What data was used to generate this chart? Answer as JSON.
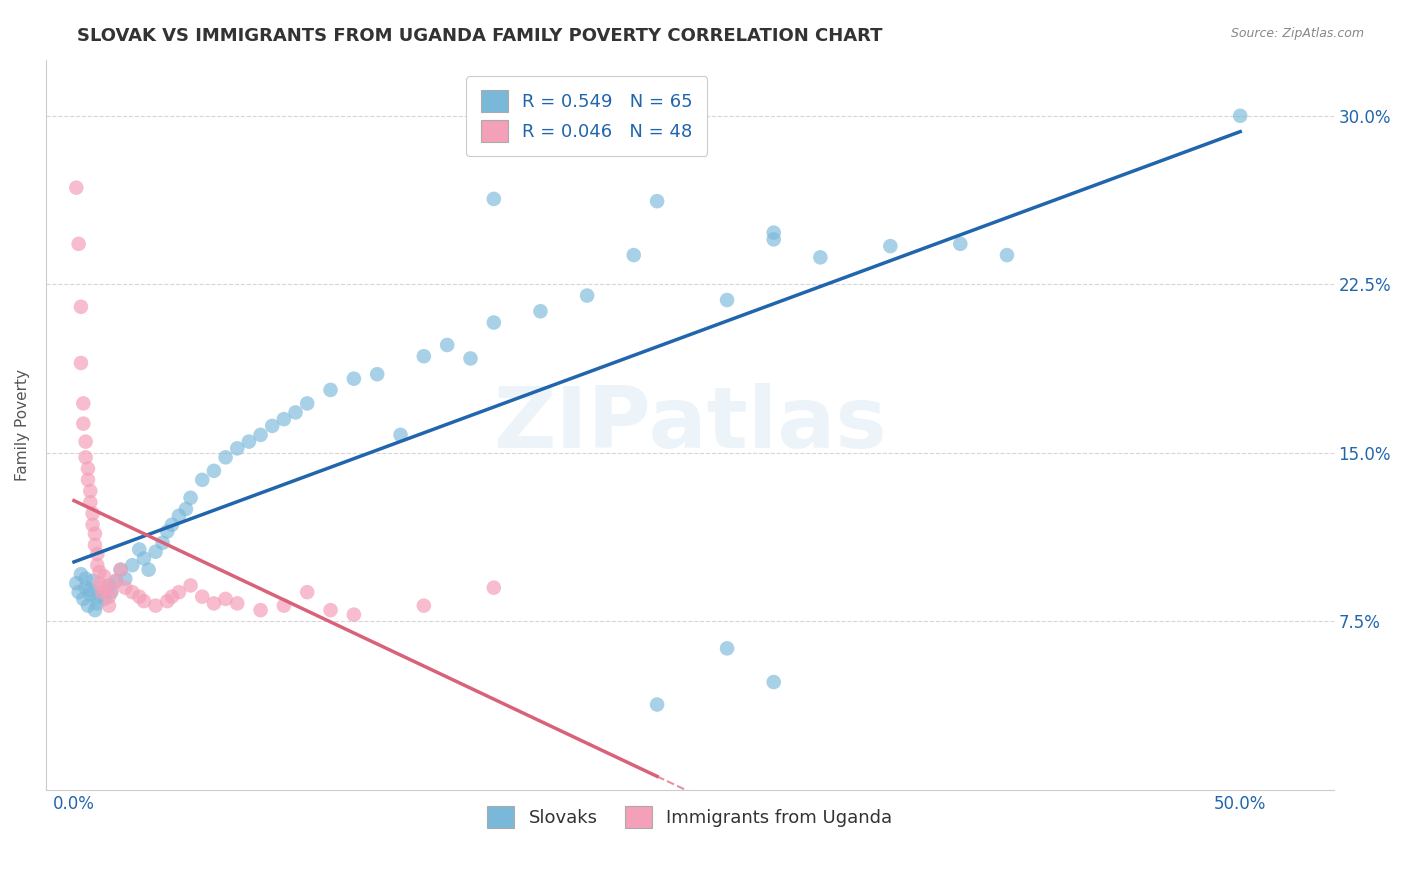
{
  "title": "SLOVAK VS IMMIGRANTS FROM UGANDA FAMILY POVERTY CORRELATION CHART",
  "source": "Source: ZipAtlas.com",
  "xlim": [
    -0.012,
    0.54
  ],
  "ylim": [
    0.0,
    0.325
  ],
  "ytick_vals": [
    0.075,
    0.15,
    0.225,
    0.3
  ],
  "ytick_labels": [
    "7.5%",
    "15.0%",
    "22.5%",
    "30.0%"
  ],
  "xtick_vals": [
    0.0,
    0.5
  ],
  "xtick_labels": [
    "0.0%",
    "50.0%"
  ],
  "legend_label1": "Slovaks",
  "legend_label2": "Immigrants from Uganda",
  "watermark": "ZIPatlas",
  "blue_color": "#7ab8d9",
  "pink_color": "#f4a0b8",
  "blue_line_color": "#2166ac",
  "pink_line_color": "#d9627a",
  "blue_scatter": [
    [
      0.001,
      0.092
    ],
    [
      0.002,
      0.088
    ],
    [
      0.003,
      0.096
    ],
    [
      0.004,
      0.085
    ],
    [
      0.005,
      0.09
    ],
    [
      0.005,
      0.094
    ],
    [
      0.006,
      0.082
    ],
    [
      0.007,
      0.087
    ],
    [
      0.007,
      0.089
    ],
    [
      0.008,
      0.093
    ],
    [
      0.009,
      0.08
    ],
    [
      0.01,
      0.083
    ],
    [
      0.01,
      0.086
    ],
    [
      0.012,
      0.088
    ],
    [
      0.013,
      0.085
    ],
    [
      0.015,
      0.091
    ],
    [
      0.016,
      0.088
    ],
    [
      0.018,
      0.093
    ],
    [
      0.02,
      0.098
    ],
    [
      0.022,
      0.094
    ],
    [
      0.025,
      0.1
    ],
    [
      0.028,
      0.107
    ],
    [
      0.03,
      0.103
    ],
    [
      0.032,
      0.098
    ],
    [
      0.035,
      0.106
    ],
    [
      0.038,
      0.11
    ],
    [
      0.04,
      0.115
    ],
    [
      0.042,
      0.118
    ],
    [
      0.045,
      0.122
    ],
    [
      0.048,
      0.125
    ],
    [
      0.05,
      0.13
    ],
    [
      0.055,
      0.138
    ],
    [
      0.06,
      0.142
    ],
    [
      0.065,
      0.148
    ],
    [
      0.07,
      0.152
    ],
    [
      0.075,
      0.155
    ],
    [
      0.08,
      0.158
    ],
    [
      0.085,
      0.162
    ],
    [
      0.09,
      0.165
    ],
    [
      0.095,
      0.168
    ],
    [
      0.1,
      0.172
    ],
    [
      0.11,
      0.178
    ],
    [
      0.12,
      0.183
    ],
    [
      0.13,
      0.185
    ],
    [
      0.14,
      0.158
    ],
    [
      0.15,
      0.193
    ],
    [
      0.16,
      0.198
    ],
    [
      0.17,
      0.192
    ],
    [
      0.18,
      0.208
    ],
    [
      0.2,
      0.213
    ],
    [
      0.22,
      0.22
    ],
    [
      0.24,
      0.238
    ],
    [
      0.28,
      0.218
    ],
    [
      0.3,
      0.245
    ],
    [
      0.32,
      0.237
    ],
    [
      0.35,
      0.242
    ],
    [
      0.38,
      0.243
    ],
    [
      0.4,
      0.238
    ],
    [
      0.18,
      0.263
    ],
    [
      0.25,
      0.262
    ],
    [
      0.3,
      0.248
    ],
    [
      0.28,
      0.063
    ],
    [
      0.25,
      0.038
    ],
    [
      0.3,
      0.048
    ],
    [
      0.5,
      0.3
    ]
  ],
  "pink_scatter": [
    [
      0.001,
      0.268
    ],
    [
      0.002,
      0.243
    ],
    [
      0.003,
      0.215
    ],
    [
      0.003,
      0.19
    ],
    [
      0.004,
      0.172
    ],
    [
      0.004,
      0.163
    ],
    [
      0.005,
      0.155
    ],
    [
      0.005,
      0.148
    ],
    [
      0.006,
      0.143
    ],
    [
      0.006,
      0.138
    ],
    [
      0.007,
      0.133
    ],
    [
      0.007,
      0.128
    ],
    [
      0.008,
      0.123
    ],
    [
      0.008,
      0.118
    ],
    [
      0.009,
      0.114
    ],
    [
      0.009,
      0.109
    ],
    [
      0.01,
      0.105
    ],
    [
      0.01,
      0.1
    ],
    [
      0.011,
      0.097
    ],
    [
      0.011,
      0.092
    ],
    [
      0.012,
      0.088
    ],
    [
      0.013,
      0.09
    ],
    [
      0.013,
      0.095
    ],
    [
      0.015,
      0.086
    ],
    [
      0.015,
      0.082
    ],
    [
      0.018,
      0.093
    ],
    [
      0.02,
      0.098
    ],
    [
      0.025,
      0.088
    ],
    [
      0.03,
      0.084
    ],
    [
      0.035,
      0.082
    ],
    [
      0.04,
      0.084
    ],
    [
      0.045,
      0.088
    ],
    [
      0.05,
      0.091
    ],
    [
      0.06,
      0.083
    ],
    [
      0.07,
      0.083
    ],
    [
      0.08,
      0.08
    ],
    [
      0.09,
      0.082
    ],
    [
      0.1,
      0.088
    ],
    [
      0.11,
      0.08
    ],
    [
      0.12,
      0.078
    ],
    [
      0.15,
      0.082
    ],
    [
      0.18,
      0.09
    ],
    [
      0.055,
      0.086
    ],
    [
      0.065,
      0.085
    ],
    [
      0.042,
      0.086
    ],
    [
      0.028,
      0.086
    ],
    [
      0.022,
      0.09
    ],
    [
      0.016,
      0.089
    ]
  ],
  "grid_color": "#cccccc",
  "background_color": "#ffffff",
  "title_fontsize": 13,
  "axis_label_fontsize": 11,
  "tick_fontsize": 12,
  "legend_fontsize": 13
}
